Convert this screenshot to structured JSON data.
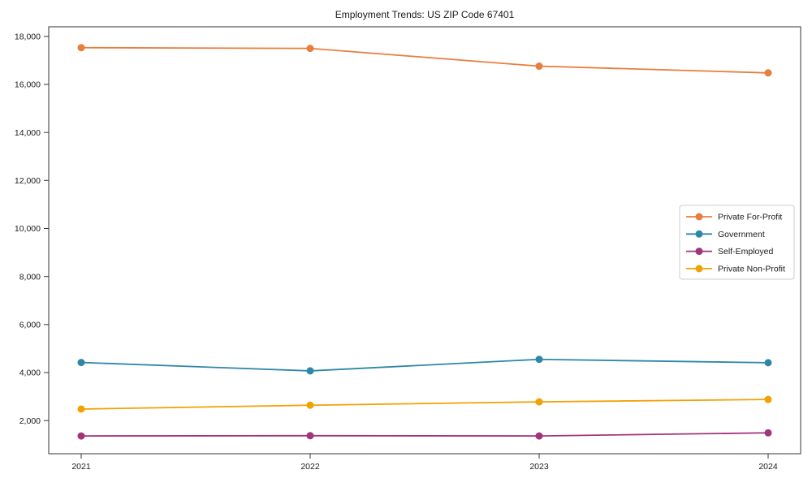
{
  "figure": {
    "background": "#ffffff",
    "text_color": "#1a1a1a",
    "spine_color": "#333333",
    "legend_border_color": "#cccccc",
    "legend_background": "#ffffff"
  },
  "chart_data": {
    "type": "line",
    "title": "Employment Trends: US ZIP Code 67401",
    "xlabel": "",
    "ylabel": "",
    "categories": [
      "2021",
      "2022",
      "2023",
      "2024"
    ],
    "series": [
      {
        "name": "Private For-Profit",
        "color": "#e87d3c",
        "values": [
          17530,
          17500,
          16760,
          16480
        ]
      },
      {
        "name": "Government",
        "color": "#2e87a8",
        "values": [
          4420,
          4070,
          4550,
          4410
        ]
      },
      {
        "name": "Self-Employed",
        "color": "#a13579",
        "values": [
          1360,
          1370,
          1360,
          1490
        ]
      },
      {
        "name": "Private Non-Profit",
        "color": "#f2a104",
        "values": [
          2480,
          2640,
          2780,
          2880
        ]
      }
    ],
    "ylim": [
      620,
      18400
    ],
    "ytick_values": [
      2000,
      4000,
      6000,
      8000,
      10000,
      12000,
      14000,
      16000,
      18000
    ],
    "ytick_labels": [
      "2,000",
      "4,000",
      "6,000",
      "8,000",
      "10,000",
      "12,000",
      "14,000",
      "16,000",
      "18,000"
    ],
    "grid": false,
    "marker": "circle",
    "legend_position": "center-right"
  }
}
